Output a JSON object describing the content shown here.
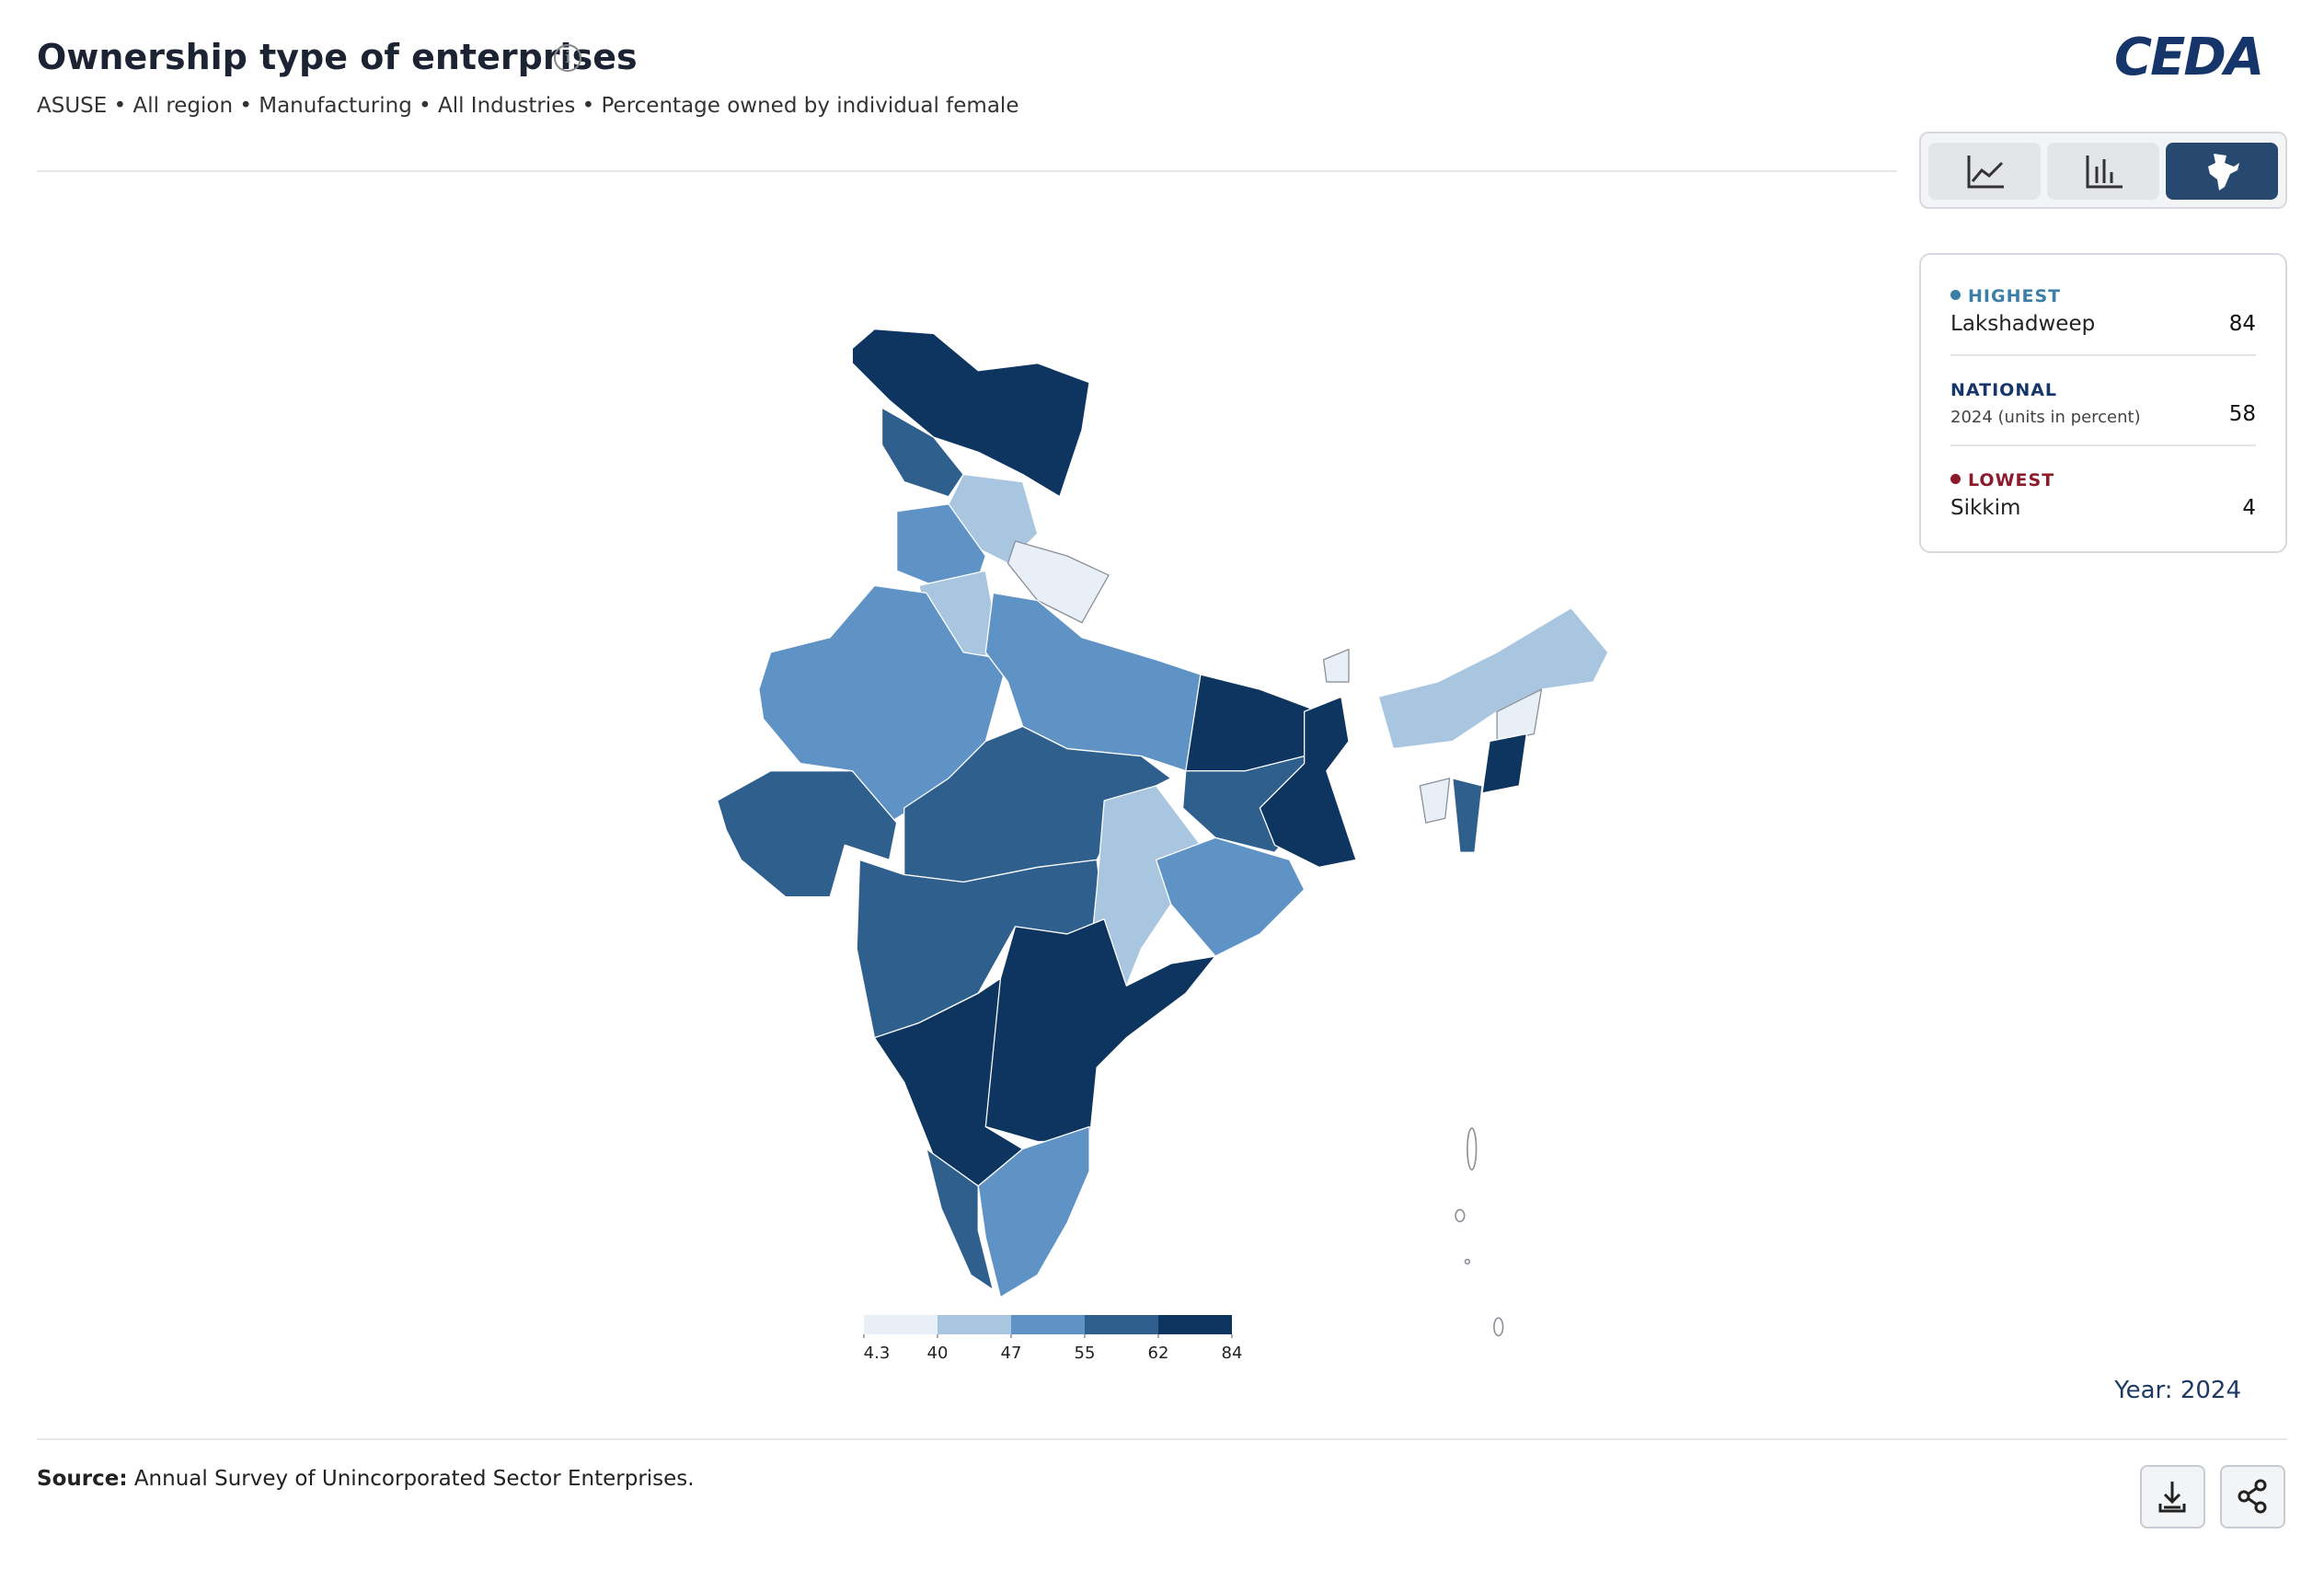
{
  "header": {
    "title": "Ownership type of enterprises",
    "subtitle": "ASUSE • All region • Manufacturing • All Industries • Percentage owned by individual female",
    "logo": "CEDA"
  },
  "legend": {
    "colors": [
      "#e8eff7",
      "#a9c6e0",
      "#5f92c5",
      "#2f5f8c",
      "#0e355f"
    ],
    "ticks": [
      4.3,
      40,
      47,
      55,
      62,
      84
    ]
  },
  "stats": {
    "highest": {
      "label": "HIGHEST",
      "name": "Lakshadweep",
      "value": 84
    },
    "national": {
      "label": "NATIONAL",
      "name": "2024 (units in percent)",
      "value": 58
    },
    "lowest": {
      "label": "LOWEST",
      "name": "Sikkim",
      "value": 4
    }
  },
  "year": "Year: 2024",
  "source": {
    "label": "Source:",
    "text": "Annual Survey of Unincorporated Sector Enterprises."
  }
}
